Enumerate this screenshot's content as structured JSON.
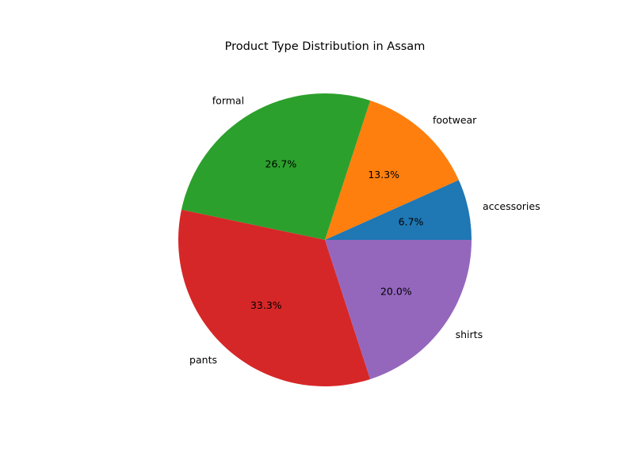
{
  "chart_data": {
    "type": "pie",
    "title": "Product Type Distribution in Assam",
    "categories": [
      "accessories",
      "footwear",
      "formal",
      "pants",
      "shirts"
    ],
    "values": [
      6.7,
      13.3,
      26.7,
      33.3,
      20.0
    ],
    "percent_labels": [
      "6.7%",
      "13.3%",
      "26.7%",
      "33.3%",
      "20.0%"
    ],
    "colors": [
      "#1f77b4",
      "#ff7f0e",
      "#2ca02c",
      "#d62728",
      "#9467bd"
    ],
    "start_angle": 0,
    "direction": "counterclockwise",
    "legend": "none"
  }
}
